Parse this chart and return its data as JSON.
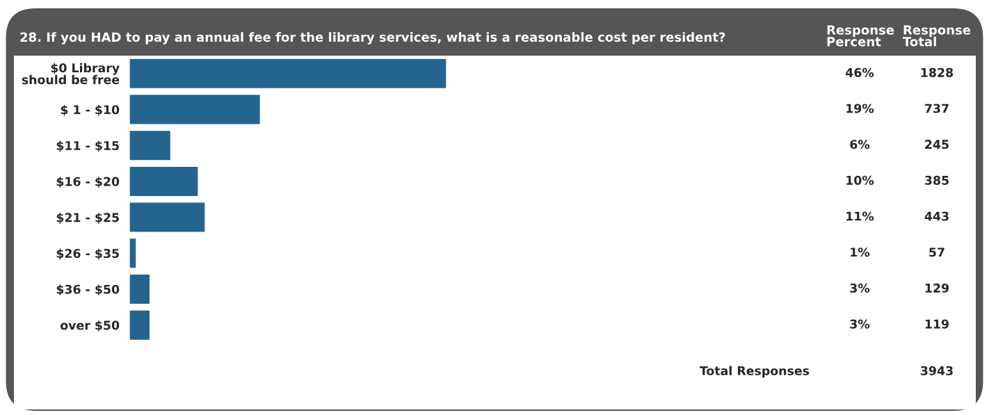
{
  "chart_data": {
    "type": "bar",
    "orientation": "horizontal",
    "title": "28. If you HAD to pay an annual fee for the library services, what is a reasonable cost per resident?",
    "categories": [
      "$0 Library\nshould be free",
      "$ 1 - $10",
      "$11 - $15",
      "$16 - $20",
      "$21 - $25",
      "$26 - $35",
      "$36 - $50",
      "over $50"
    ],
    "values": [
      46,
      19,
      6,
      10,
      11,
      1,
      3,
      3
    ],
    "value_labels": [
      "46%",
      "19%",
      "6%",
      "10%",
      "11%",
      "1%",
      "3%",
      "3%"
    ],
    "color": "#25648f",
    "tick_labels": "y",
    "grid": false,
    "legend": false,
    "annotations": [
      "Response\nPercent",
      "Response\nTotal",
      "1828",
      "737",
      "245",
      "385",
      "443",
      "57",
      "129",
      "119",
      "Total Responses",
      "3943"
    ]
  }
}
